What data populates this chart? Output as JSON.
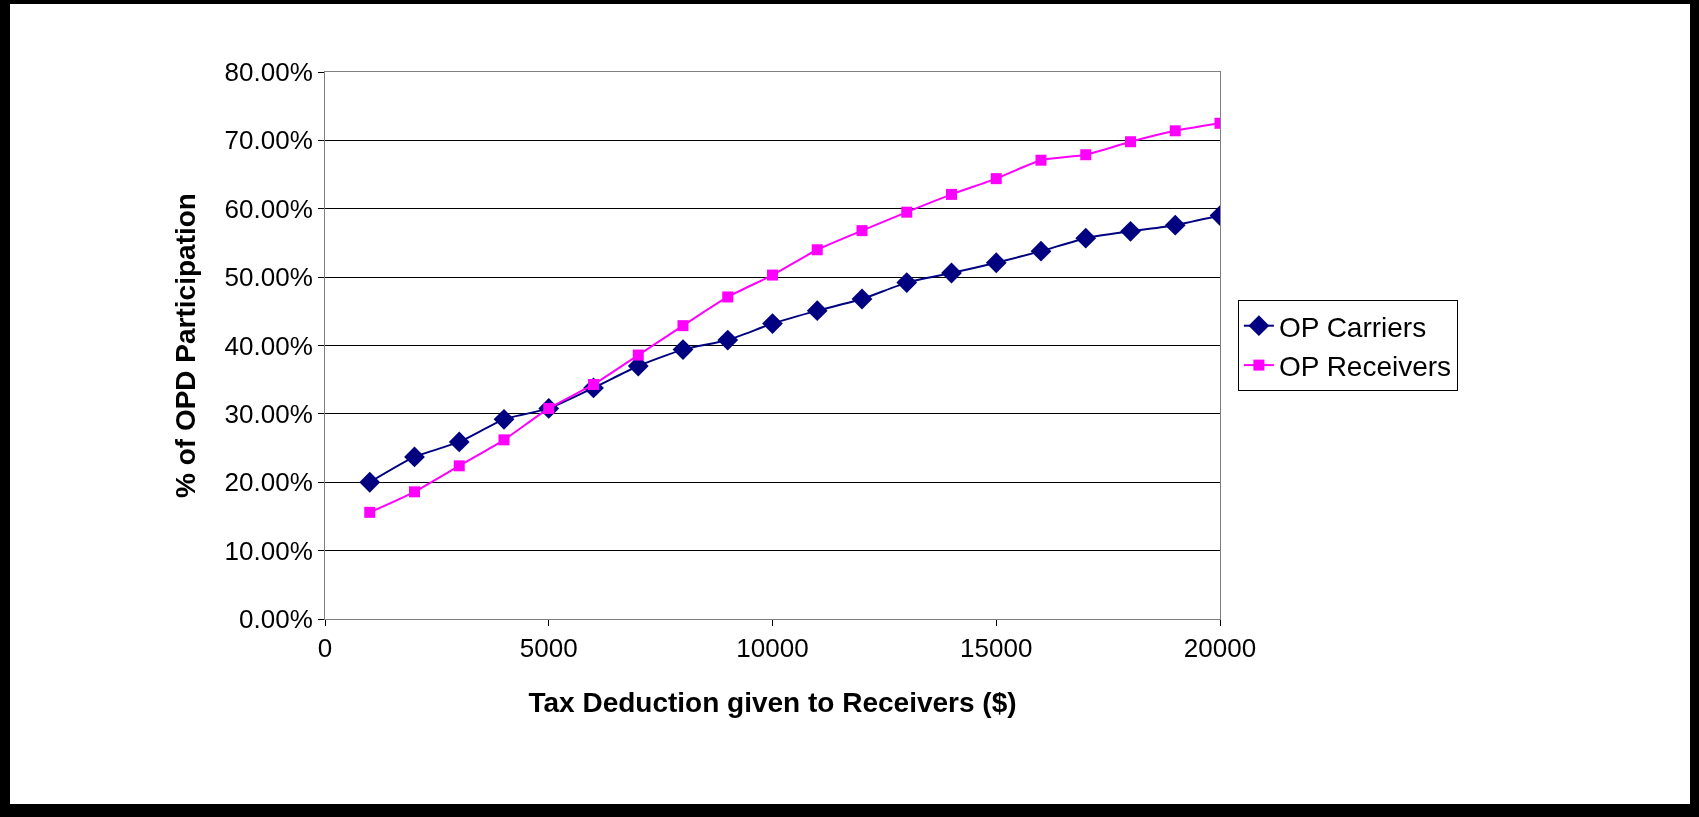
{
  "chart_data": {
    "type": "line",
    "xlabel": "Tax Deduction given to Receivers ($)",
    "ylabel": "% of OPD Participation",
    "x": [
      1000,
      2000,
      3000,
      4000,
      5000,
      6000,
      7000,
      8000,
      9000,
      10000,
      11000,
      12000,
      13000,
      14000,
      15000,
      16000,
      17000,
      18000,
      19000,
      20000
    ],
    "series": [
      {
        "name": "OP Carriers",
        "color": "#000080",
        "marker": "diamond",
        "values": [
          20.0,
          23.7,
          25.9,
          29.2,
          30.8,
          33.8,
          37.0,
          39.4,
          40.8,
          43.2,
          45.1,
          46.8,
          49.2,
          50.6,
          52.1,
          53.8,
          55.7,
          56.7,
          57.6,
          59.0
        ]
      },
      {
        "name": "OP Receivers",
        "color": "#ff00ff",
        "marker": "square",
        "values": [
          15.6,
          18.6,
          22.4,
          26.2,
          30.8,
          34.3,
          38.6,
          42.9,
          47.1,
          50.3,
          54.0,
          56.8,
          59.5,
          62.1,
          64.4,
          67.1,
          67.9,
          69.8,
          71.4,
          72.5
        ]
      }
    ],
    "xlim": [
      0,
      20000
    ],
    "xticks": [
      0,
      5000,
      10000,
      15000,
      20000
    ],
    "ylim": [
      0,
      80
    ],
    "yticks": [
      {
        "value": 0,
        "label": "0.00%"
      },
      {
        "value": 10,
        "label": "10.00%"
      },
      {
        "value": 20,
        "label": "20.00%"
      },
      {
        "value": 30,
        "label": "30.00%"
      },
      {
        "value": 40,
        "label": "40.00%"
      },
      {
        "value": 50,
        "label": "50.00%"
      },
      {
        "value": 60,
        "label": "60.00%"
      },
      {
        "value": 70,
        "label": "70.00%"
      },
      {
        "value": 80,
        "label": "80.00%"
      }
    ],
    "grid": "y",
    "legend": "right",
    "line_style": "solid"
  }
}
